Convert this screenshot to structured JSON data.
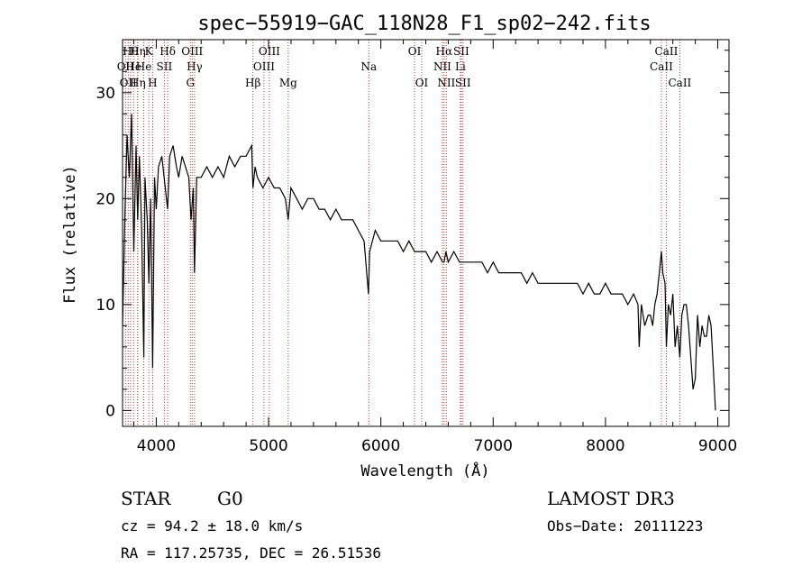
{
  "chart_data": {
    "type": "line",
    "title": "spec−55919−GAC_118N28_F1_sp02−242.fits",
    "xlabel": "Wavelength (Å)",
    "ylabel": "Flux (relative)",
    "xlim": [
      3700,
      9100
    ],
    "ylim": [
      -1.5,
      35
    ],
    "x_ticks": [
      {
        "value": 4000,
        "label": "4000"
      },
      {
        "value": 5000,
        "label": "5000"
      },
      {
        "value": 6000,
        "label": "6000"
      },
      {
        "value": 7000,
        "label": "7000"
      },
      {
        "value": 8000,
        "label": "8000"
      },
      {
        "value": 9000,
        "label": "9000"
      }
    ],
    "y_ticks": [
      {
        "value": 0,
        "label": "0"
      },
      {
        "value": 10,
        "label": "10"
      },
      {
        "value": 20,
        "label": "20"
      },
      {
        "value": 30,
        "label": "30"
      }
    ],
    "series": [
      {
        "name": "spectrum",
        "x": [
          3700,
          3720,
          3740,
          3760,
          3780,
          3800,
          3820,
          3835,
          3850,
          3870,
          3889,
          3900,
          3920,
          3934,
          3950,
          3968,
          3985,
          4000,
          4020,
          4050,
          4080,
          4101,
          4120,
          4150,
          4180,
          4200,
          4230,
          4260,
          4290,
          4310,
          4330,
          4340,
          4360,
          4400,
          4450,
          4500,
          4550,
          4600,
          4650,
          4700,
          4750,
          4800,
          4850,
          4861,
          4880,
          4900,
          4950,
          5000,
          5050,
          5100,
          5150,
          5175,
          5200,
          5250,
          5300,
          5350,
          5400,
          5450,
          5500,
          5550,
          5600,
          5650,
          5700,
          5750,
          5800,
          5850,
          5890,
          5900,
          5950,
          6000,
          6050,
          6100,
          6150,
          6200,
          6250,
          6300,
          6350,
          6400,
          6450,
          6500,
          6550,
          6563,
          6580,
          6600,
          6650,
          6700,
          6750,
          6800,
          6850,
          6900,
          6950,
          7000,
          7050,
          7100,
          7150,
          7200,
          7250,
          7300,
          7350,
          7400,
          7450,
          7500,
          7550,
          7600,
          7650,
          7700,
          7750,
          7800,
          7850,
          7900,
          7950,
          8000,
          8050,
          8100,
          8150,
          8200,
          8250,
          8290,
          8300,
          8320,
          8350,
          8380,
          8400,
          8420,
          8440,
          8460,
          8480,
          8498,
          8510,
          8530,
          8542,
          8560,
          8580,
          8600,
          8620,
          8640,
          8662,
          8680,
          8700,
          8720,
          8740,
          8760,
          8780,
          8800,
          8820,
          8840,
          8860,
          8880,
          8900,
          8920,
          8940,
          8960,
          8980
        ],
        "values": [
          8,
          18,
          26,
          22,
          28,
          15,
          25,
          18,
          24,
          17,
          5,
          22,
          18,
          12,
          20,
          4,
          22,
          19,
          23,
          24,
          21,
          19,
          24,
          25,
          23,
          22,
          24,
          23,
          22,
          18,
          21,
          13,
          22,
          22,
          23,
          22,
          23,
          22,
          24,
          23,
          24,
          24,
          25,
          21,
          23,
          22,
          21,
          22,
          21,
          21,
          20,
          18,
          21,
          20,
          19,
          20,
          20,
          19,
          19,
          18,
          19,
          18,
          18,
          18,
          17,
          16,
          11,
          15,
          17,
          16,
          16,
          16,
          16,
          15,
          16,
          15,
          15,
          15,
          14,
          15,
          14,
          14,
          15,
          14,
          15,
          14,
          14,
          14,
          14,
          14,
          13,
          14,
          13,
          13,
          13,
          13,
          13,
          12,
          13,
          12,
          12,
          12,
          12,
          12,
          12,
          12,
          12,
          11,
          12,
          11,
          11,
          12,
          11,
          11,
          11,
          10,
          11,
          10,
          6,
          10,
          8,
          9,
          9,
          8,
          10,
          11,
          13,
          15,
          13,
          12,
          6,
          10,
          9,
          11,
          6,
          8,
          5,
          9,
          10,
          10,
          8,
          5,
          2,
          3,
          9,
          6,
          8,
          7,
          7,
          9,
          8,
          4,
          0
        ]
      }
    ],
    "lines": [
      {
        "wavelength": 3727,
        "row": 1,
        "label": "OII"
      },
      {
        "wavelength": 3750,
        "row": 2,
        "label": "OII"
      },
      {
        "wavelength": 3771,
        "row": 0,
        "label": "Hθ"
      },
      {
        "wavelength": 3798,
        "row": 1,
        "label": "He"
      },
      {
        "wavelength": 3835,
        "row": 0,
        "label": "Hη"
      },
      {
        "wavelength": 3835,
        "row": 2,
        "label": "Hη"
      },
      {
        "wavelength": 3889,
        "row": 1,
        "label": "He"
      },
      {
        "wavelength": 3934,
        "row": 0,
        "label": "K"
      },
      {
        "wavelength": 3968,
        "row": 2,
        "label": "H"
      },
      {
        "wavelength": 4072,
        "row": 1,
        "label": "SII"
      },
      {
        "wavelength": 4102,
        "row": 0,
        "label": "Hδ"
      },
      {
        "wavelength": 4304,
        "row": 2,
        "label": "G"
      },
      {
        "wavelength": 4320,
        "row": 0,
        "label": "OIII"
      },
      {
        "wavelength": 4341,
        "row": 1,
        "label": "Hγ"
      },
      {
        "wavelength": 4861,
        "row": 2,
        "label": "Hβ"
      },
      {
        "wavelength": 4959,
        "row": 1,
        "label": "OIII"
      },
      {
        "wavelength": 5007,
        "row": 0,
        "label": "OIII"
      },
      {
        "wavelength": 5175,
        "row": 2,
        "label": "Mg"
      },
      {
        "wavelength": 5893,
        "row": 1,
        "label": "Na"
      },
      {
        "wavelength": 6300,
        "row": 0,
        "label": "OI"
      },
      {
        "wavelength": 6364,
        "row": 2,
        "label": "OI"
      },
      {
        "wavelength": 6548,
        "row": 1,
        "label": "NII"
      },
      {
        "wavelength": 6563,
        "row": 0,
        "label": "Hα"
      },
      {
        "wavelength": 6583,
        "row": 2,
        "label": "NII"
      },
      {
        "wavelength": 6708,
        "row": 1,
        "label": "Li"
      },
      {
        "wavelength": 6716,
        "row": 0,
        "label": "SII"
      },
      {
        "wavelength": 6731,
        "row": 2,
        "label": "SII"
      },
      {
        "wavelength": 8498,
        "row": 1,
        "label": "CaII"
      },
      {
        "wavelength": 8542,
        "row": 0,
        "label": "CaII"
      },
      {
        "wavelength": 8662,
        "row": 2,
        "label": "CaII"
      }
    ]
  },
  "info": {
    "class": "STAR",
    "subclass": "G0",
    "survey": "LAMOST DR3",
    "cz": "cz = 94.2 ± 18.0 km/s",
    "obs_date": "Obs−Date: 20111223",
    "radec": "RA = 117.25735, DEC =  26.51536"
  },
  "colors": {
    "spectrum": "#000000",
    "line_marker": "#c0392b",
    "background": "#ffffff"
  }
}
